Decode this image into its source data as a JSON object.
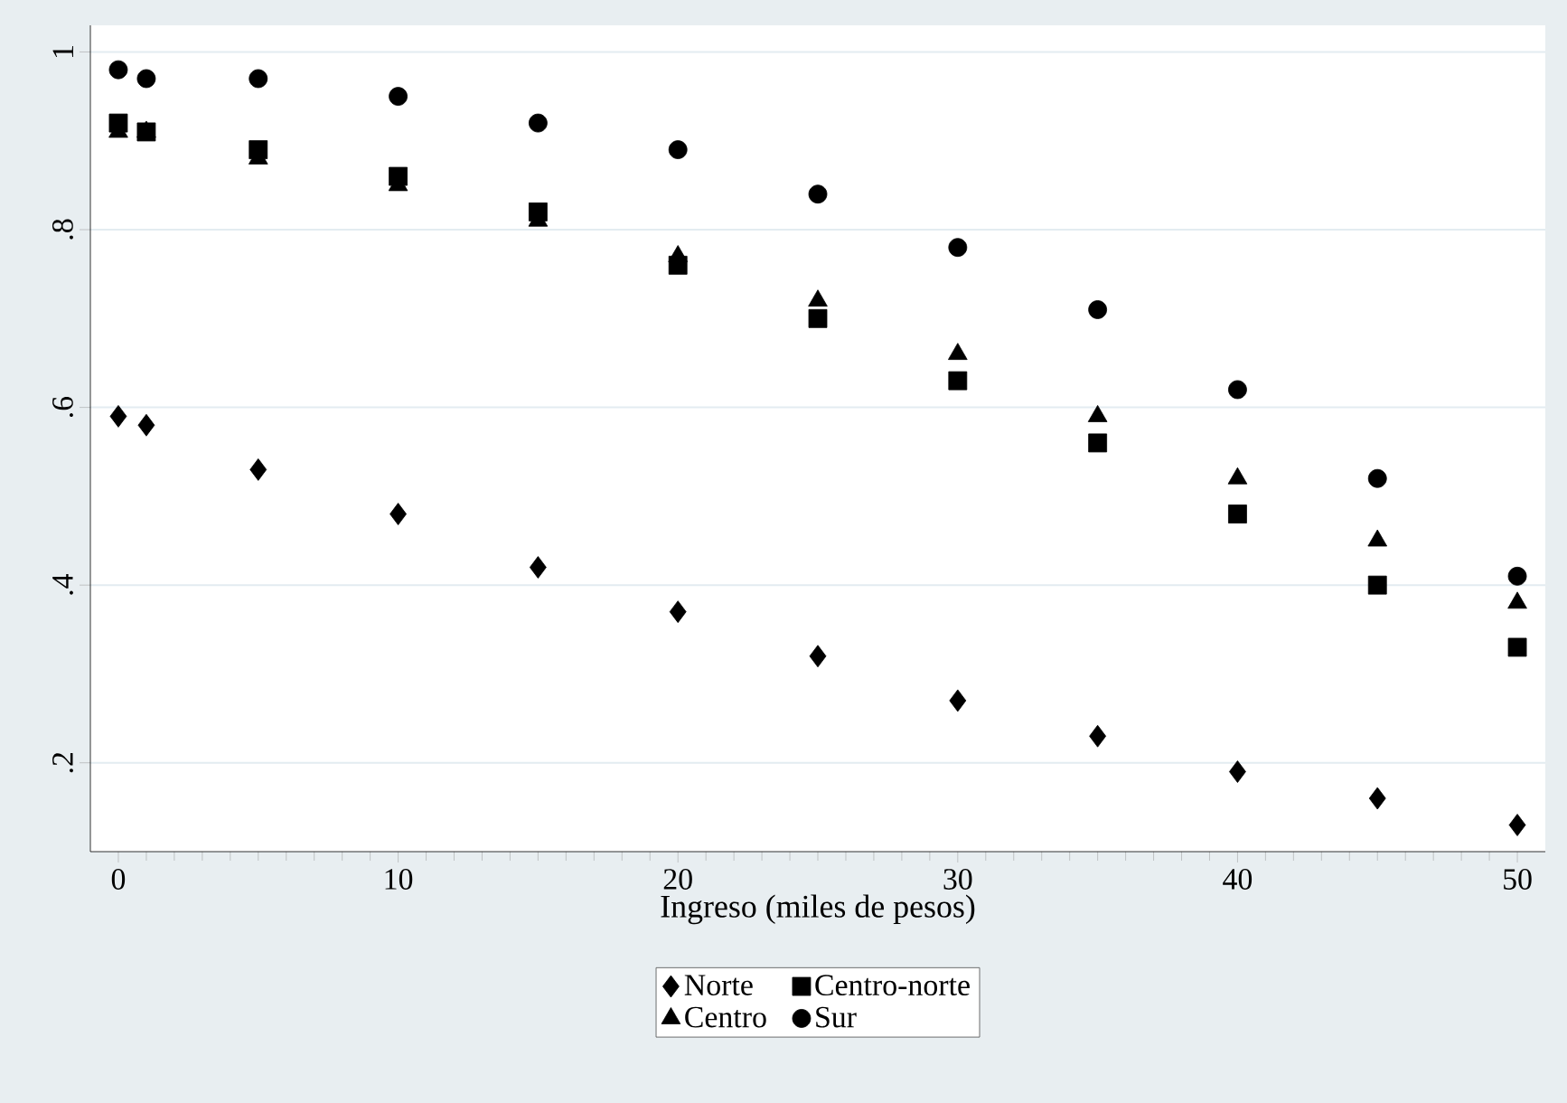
{
  "chart_data": {
    "type": "scatter",
    "xlabel": "Ingreso (miles de pesos)",
    "x": [
      0,
      1,
      5,
      10,
      15,
      20,
      25,
      30,
      35,
      40,
      45,
      50
    ],
    "series": [
      {
        "name": "Norte",
        "color": "#000000",
        "marker": "diamond",
        "values": [
          0.59,
          0.58,
          0.53,
          0.48,
          0.42,
          0.37,
          0.32,
          0.27,
          0.23,
          0.19,
          0.16,
          0.13
        ]
      },
      {
        "name": "Centro-norte",
        "color": "#000000",
        "marker": "square",
        "values": [
          0.92,
          0.91,
          0.89,
          0.86,
          0.82,
          0.76,
          0.7,
          0.63,
          0.56,
          0.48,
          0.4,
          0.33
        ]
      },
      {
        "name": "Centro",
        "color": "#000000",
        "marker": "triangle",
        "values": [
          0.91,
          0.91,
          0.88,
          0.85,
          0.81,
          0.77,
          0.72,
          0.66,
          0.59,
          0.52,
          0.45,
          0.38
        ]
      },
      {
        "name": "Sur",
        "color": "#000000",
        "marker": "circle",
        "values": [
          0.98,
          0.97,
          0.97,
          0.95,
          0.92,
          0.89,
          0.84,
          0.78,
          0.71,
          0.62,
          0.52,
          0.41
        ]
      }
    ],
    "xlim": [
      -1,
      51
    ],
    "ylim": [
      0.1,
      1.03
    ],
    "xticks": [
      0,
      10,
      20,
      30,
      40,
      50
    ],
    "yticks": [
      {
        "value": 0.2,
        "label": ".2"
      },
      {
        "value": 0.4,
        "label": ".4"
      },
      {
        "value": 0.6,
        "label": ".6"
      },
      {
        "value": 0.8,
        "label": ".8"
      },
      {
        "value": 1,
        "label": "1"
      }
    ],
    "grid": "y",
    "legend": "bottom"
  }
}
